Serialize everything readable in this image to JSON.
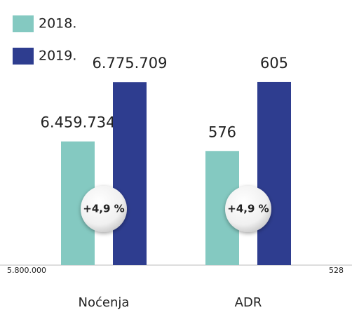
{
  "chart_data": [
    {
      "type": "bar",
      "categories": [
        "Noćenja"
      ],
      "series": [
        {
          "name": "2018.",
          "color": "#84c9c1",
          "values": [
            6459734
          ],
          "value_labels": [
            "6.459.734"
          ]
        },
        {
          "name": "2019.",
          "color": "#2e3d8f",
          "values": [
            6775709
          ],
          "value_labels": [
            "6.775.709"
          ]
        }
      ],
      "ylim": [
        5800000,
        6840000
      ],
      "yticks": [
        {
          "value": 5800000,
          "label": "5.800.000"
        }
      ],
      "annotations": [
        "+4,9 %"
      ]
    },
    {
      "type": "bar",
      "categories": [
        "ADR"
      ],
      "series": [
        {
          "color": "#84c9c1",
          "values": [
            576
          ]
        },
        {
          "color": "#2e3d8f",
          "values": [
            605
          ]
        }
      ],
      "ylim": [
        528,
        610
      ],
      "yticks": [
        528
      ],
      "annotations": [
        "+4,9 %"
      ]
    }
  ]
}
